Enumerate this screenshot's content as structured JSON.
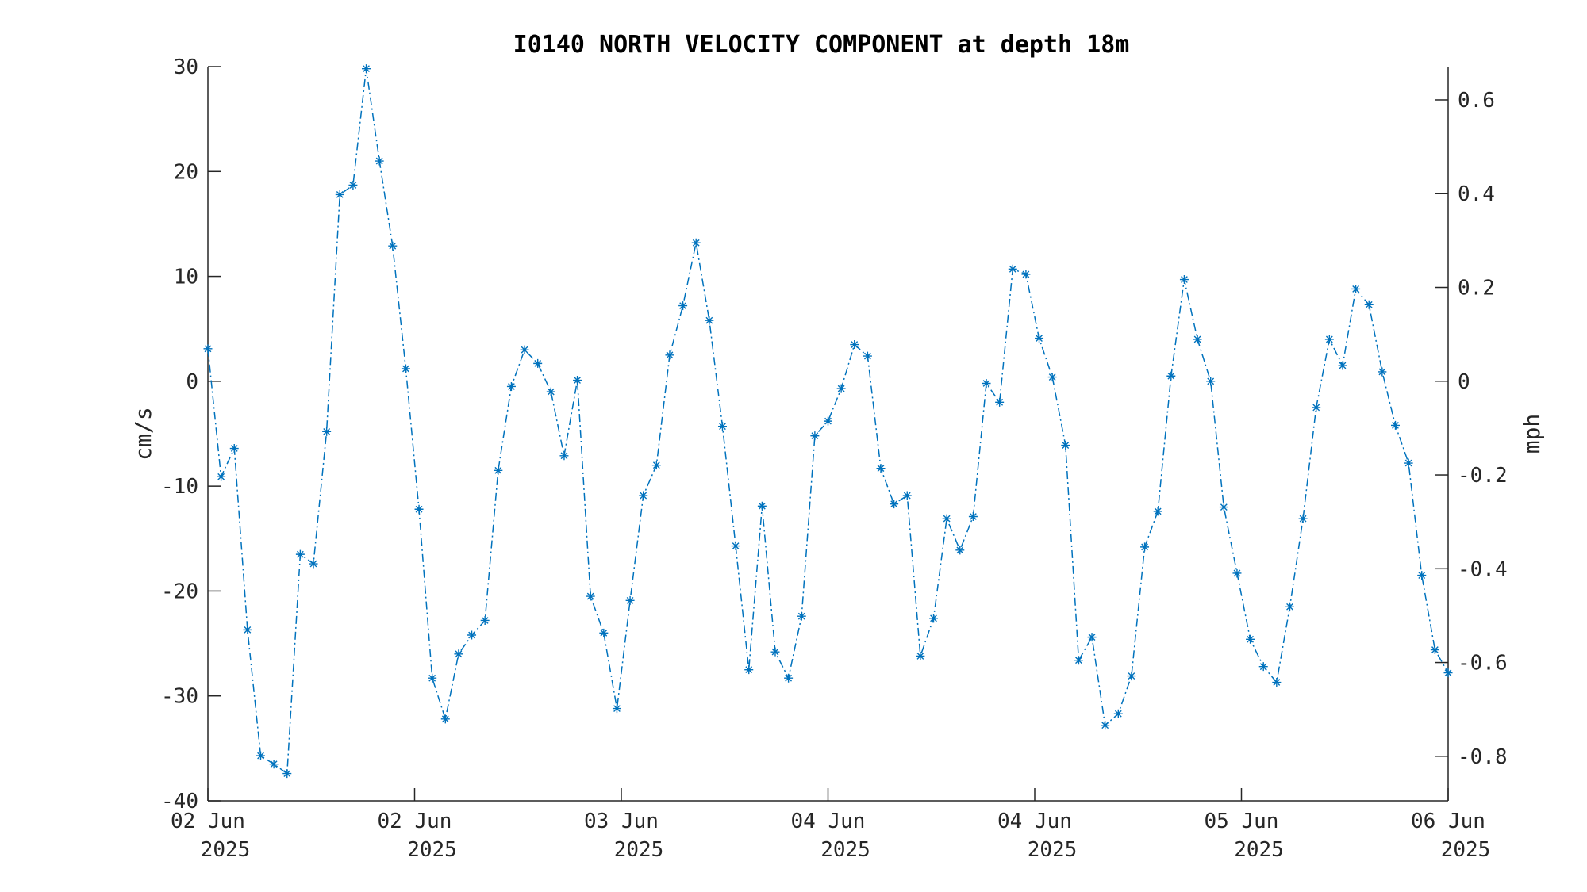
{
  "chart_data": {
    "type": "line",
    "title": "I0140 NORTH VELOCITY COMPONENT at depth 18m",
    "ylabel": "cm/s",
    "y2label": "mph",
    "ylim": [
      -40,
      30
    ],
    "y_ticks": [
      "30",
      "20",
      "10",
      "0",
      "-10",
      "-20",
      "-30",
      "-40"
    ],
    "y2lim": [
      -0.895,
      0.671
    ],
    "y2_ticks": [
      "0.6",
      "0.4",
      "0.2",
      "0",
      "-0.2",
      "-0.4",
      "-0.6",
      "-0.8"
    ],
    "x_ticks": [
      {
        "line1": "02 Jun",
        "line2": "2025"
      },
      {
        "line1": "02 Jun",
        "line2": "2025"
      },
      {
        "line1": "03 Jun",
        "line2": "2025"
      },
      {
        "line1": "04 Jun",
        "line2": "2025"
      },
      {
        "line1": "04 Jun",
        "line2": "2025"
      },
      {
        "line1": "05 Jun",
        "line2": "2025"
      },
      {
        "line1": "06 Jun",
        "line2": "2025"
      }
    ],
    "grid": false,
    "line_color": "#0072BD",
    "line_style": "dash-dot",
    "marker": "asterisk",
    "series": [
      {
        "values": [
          3.1,
          -9.1,
          -6.4,
          -23.7,
          -35.7,
          -36.5,
          -37.4,
          -16.5,
          -17.4,
          -4.8,
          17.8,
          18.7,
          29.8,
          21.0,
          12.9,
          1.2,
          -12.2,
          -28.3,
          -32.2,
          -26.0,
          -24.2,
          -22.8,
          -8.5,
          -0.5,
          3.0,
          1.7,
          -1.0,
          -7.1,
          0.1,
          -20.5,
          -24.0,
          -31.2,
          -20.9,
          -10.9,
          -8.0,
          2.5,
          7.2,
          13.2,
          5.8,
          -4.3,
          -15.7,
          -27.5,
          -11.9,
          -25.8,
          -28.3,
          -22.4,
          -5.2,
          -3.8,
          -0.7,
          3.5,
          2.4,
          -8.3,
          -11.7,
          -10.9,
          -26.2,
          -22.6,
          -13.1,
          -16.1,
          -12.9,
          -0.2,
          -2.0,
          10.7,
          10.2,
          4.1,
          0.4,
          -6.1,
          -26.6,
          -24.4,
          -32.8,
          -31.7,
          -28.1,
          -15.8,
          -12.4,
          0.5,
          9.7,
          4.0,
          0.0,
          -12.0,
          -18.3,
          -24.6,
          -27.2,
          -28.7,
          -21.5,
          -13.1,
          -2.5,
          4.0,
          1.5,
          8.8,
          7.3,
          0.9,
          -4.2,
          -7.8,
          -18.5,
          -25.6,
          -27.8
        ]
      }
    ]
  }
}
